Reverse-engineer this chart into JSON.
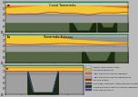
{
  "legend_items": [
    {
      "label": "Modern accumulation zone",
      "color": "#b8e0f0"
    },
    {
      "label": "Estuarine sediments",
      "color": "#f0c830"
    },
    {
      "label": "Tidal Creek interchannel sediments",
      "color": "#e07830"
    },
    {
      "label": "Tidal Creek interchannel complex zone",
      "color": "#b0b0b0"
    },
    {
      "label": "Eroding surface",
      "color": "#cc2200"
    },
    {
      "label": "Fluvial/Bay high-order interchannel sediments",
      "color": "#556644"
    },
    {
      "label": "Costa Rica high-order interchannel sediments",
      "color": "#2a3a20"
    },
    {
      "label": "Paleochannel outline",
      "color": "#4444cc"
    }
  ],
  "fig_bg": "#bbbbbb",
  "panel_bg": "#909090"
}
